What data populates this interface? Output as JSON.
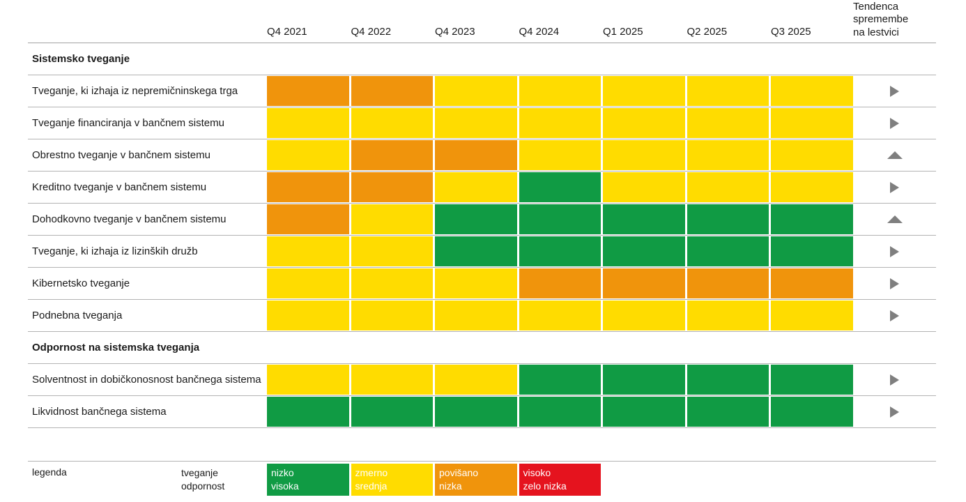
{
  "chart_data": {
    "type": "heatmap",
    "x_labels": [
      "Q4 2021",
      "Q4 2022",
      "Q4 2023",
      "Q4 2024",
      "Q1 2025",
      "Q2 2025",
      "Q3 2025"
    ],
    "trend_column_label": "Tendenca spremembe na lestvici",
    "color_levels": {
      "green": "#109B44",
      "yellow": "#FFDC00",
      "orange": "#F0940C",
      "red": "#E5131E"
    },
    "sections": [
      {
        "title": "Sistemsko tveganje",
        "rows": [
          {
            "label": "Tveganje, ki izhaja iz nepremičninskega trga",
            "values": [
              "orange",
              "orange",
              "yellow",
              "yellow",
              "yellow",
              "yellow",
              "yellow"
            ],
            "trend": "right"
          },
          {
            "label": "Tveganje financiranja v bančnem sistemu",
            "values": [
              "yellow",
              "yellow",
              "yellow",
              "yellow",
              "yellow",
              "yellow",
              "yellow"
            ],
            "trend": "right"
          },
          {
            "label": "Obrestno tveganje v bančnem sistemu",
            "values": [
              "yellow",
              "orange",
              "orange",
              "yellow",
              "yellow",
              "yellow",
              "yellow"
            ],
            "trend": "up"
          },
          {
            "label": "Kreditno tveganje v bančnem sistemu",
            "values": [
              "orange",
              "orange",
              "yellow",
              "green",
              "yellow",
              "yellow",
              "yellow"
            ],
            "trend": "right"
          },
          {
            "label": "Dohodkovno tveganje v bančnem sistemu",
            "values": [
              "orange",
              "yellow",
              "green",
              "green",
              "green",
              "green",
              "green"
            ],
            "trend": "up"
          },
          {
            "label": "Tveganje, ki izhaja iz lizinških družb",
            "values": [
              "yellow",
              "yellow",
              "green",
              "green",
              "green",
              "green",
              "green"
            ],
            "trend": "right"
          },
          {
            "label": "Kibernetsko tveganje",
            "values": [
              "yellow",
              "yellow",
              "yellow",
              "orange",
              "orange",
              "orange",
              "orange"
            ],
            "trend": "right"
          },
          {
            "label": "Podnebna tveganja",
            "values": [
              "yellow",
              "yellow",
              "yellow",
              "yellow",
              "yellow",
              "yellow",
              "yellow"
            ],
            "trend": "right"
          }
        ]
      },
      {
        "title": "Odpornost na sistemska tveganja",
        "rows": [
          {
            "label": "Solventnost in dobičkonosnost bančnega sistema",
            "values": [
              "yellow",
              "yellow",
              "yellow",
              "green",
              "green",
              "green",
              "green"
            ],
            "trend": "right"
          },
          {
            "label": "Likvidnost bančnega sistema",
            "values": [
              "green",
              "green",
              "green",
              "green",
              "green",
              "green",
              "green"
            ],
            "trend": "right"
          }
        ]
      }
    ],
    "legend": {
      "label": "legenda",
      "scale_labels": [
        "tveganje",
        "odpornost"
      ],
      "entries": [
        {
          "color": "green",
          "hex": "#109B44",
          "tveganje": "nizko",
          "odpornost": "visoka"
        },
        {
          "color": "yellow",
          "hex": "#FFDC00",
          "tveganje": "zmerno",
          "odpornost": "srednja"
        },
        {
          "color": "orange",
          "hex": "#F0940C",
          "tveganje": "povišano",
          "odpornost": "nizka"
        },
        {
          "color": "red",
          "hex": "#E5131E",
          "tveganje": "visoko",
          "odpornost": "zelo nizka"
        }
      ]
    }
  }
}
